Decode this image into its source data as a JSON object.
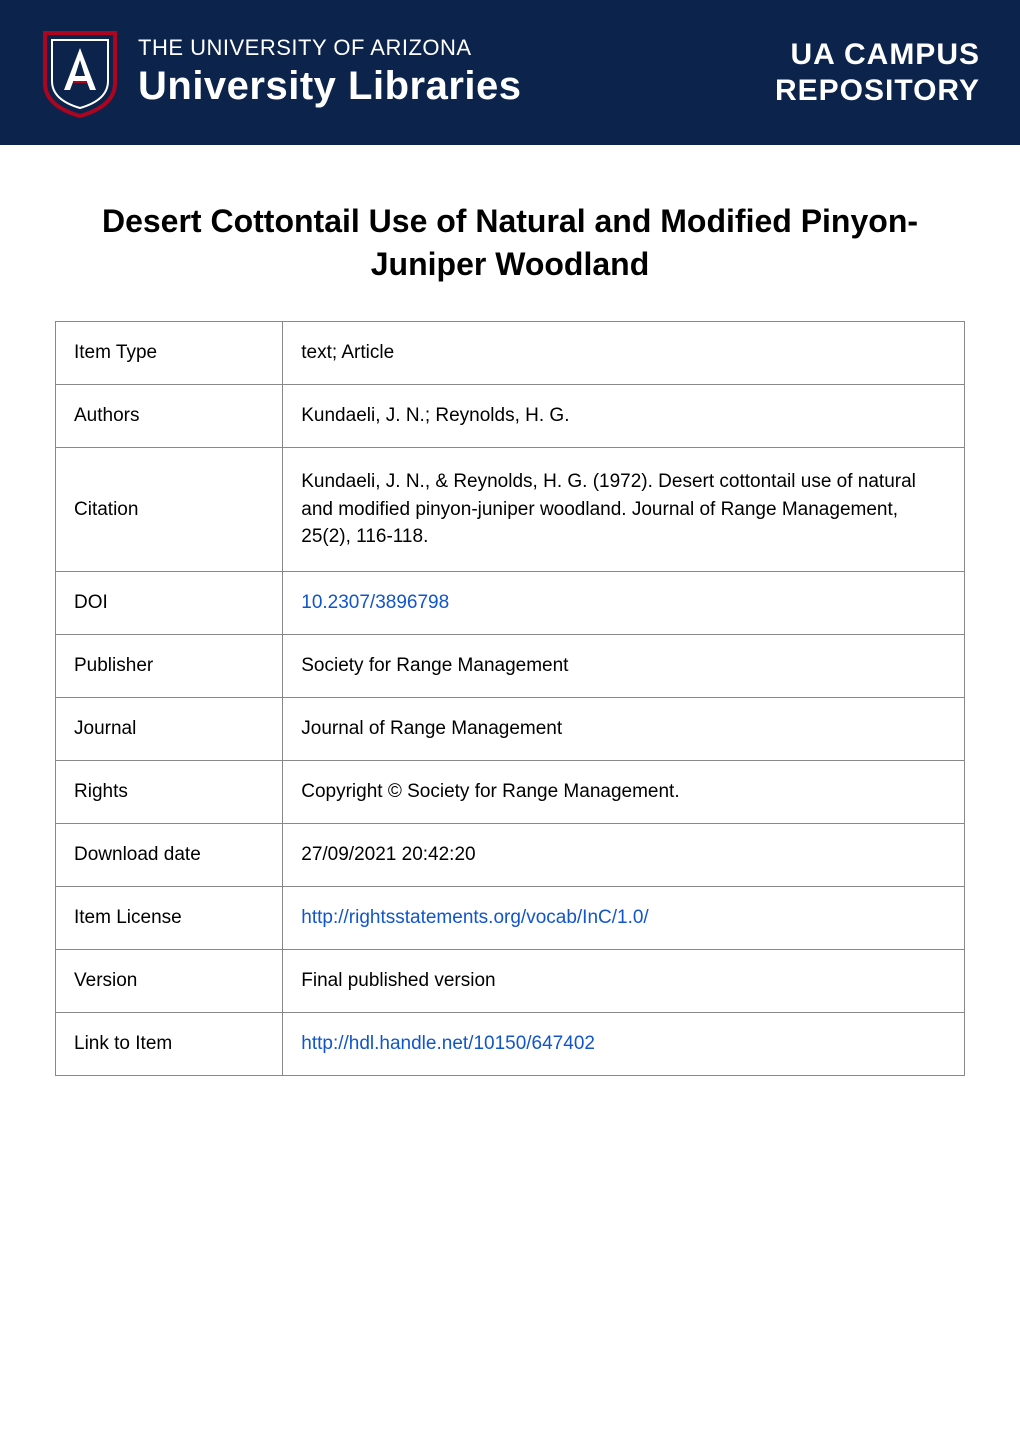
{
  "banner": {
    "subtitle": "THE UNIVERSITY OF ARIZONA",
    "title": "University Libraries",
    "right_line1": "UA CAMPUS",
    "right_line2": "REPOSITORY",
    "background_color": "#0c234b",
    "text_color": "#ffffff",
    "logo_stroke": "#ab0520",
    "logo_fill": "#ffffff"
  },
  "page_title": "Desert Cottontail Use of Natural and Modified Pinyon-Juniper Woodland",
  "table": {
    "border_color": "#888888",
    "label_fontsize": 19,
    "value_fontsize": 19,
    "link_color": "#1155cc",
    "rows": [
      {
        "label": "Item Type",
        "value": "text; Article",
        "is_link": false
      },
      {
        "label": "Authors",
        "value": "Kundaeli, J. N.; Reynolds, H. G.",
        "is_link": false
      },
      {
        "label": "Citation",
        "value": "Kundaeli, J. N., & Reynolds, H. G. (1972). Desert cottontail use of natural and modified pinyon-juniper woodland. Journal of Range Management, 25(2), 116-118.",
        "is_link": false
      },
      {
        "label": "DOI",
        "value": "10.2307/3896798",
        "is_link": true
      },
      {
        "label": "Publisher",
        "value": "Society for Range Management",
        "is_link": false
      },
      {
        "label": "Journal",
        "value": "Journal of Range Management",
        "is_link": false
      },
      {
        "label": "Rights",
        "value": "Copyright © Society for Range Management.",
        "is_link": false
      },
      {
        "label": "Download date",
        "value": "27/09/2021 20:42:20",
        "is_link": false
      },
      {
        "label": "Item License",
        "value": "http://rightsstatements.org/vocab/InC/1.0/",
        "is_link": true
      },
      {
        "label": "Version",
        "value": "Final published version",
        "is_link": false
      },
      {
        "label": "Link to Item",
        "value": "http://hdl.handle.net/10150/647402",
        "is_link": true
      }
    ]
  }
}
